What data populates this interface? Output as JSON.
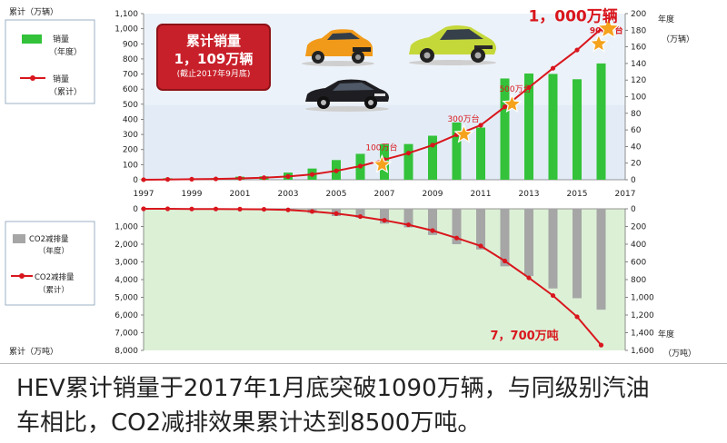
{
  "chart_data": [
    {
      "type": "bar+line",
      "title": "",
      "x": [
        1997,
        1998,
        1999,
        2000,
        2001,
        2002,
        2003,
        2004,
        2005,
        2006,
        2007,
        2008,
        2009,
        2010,
        2011,
        2012,
        2013,
        2014,
        2015,
        2016
      ],
      "x_ticks": [
        "1997",
        "1999",
        "2001",
        "2003",
        "2005",
        "2007",
        "2009",
        "2011",
        "2013",
        "2015",
        "2017"
      ],
      "left_axis": {
        "title": "累计（万辆）",
        "ylim": [
          0,
          1100
        ],
        "ticks": [
          "0",
          "100",
          "200",
          "300",
          "400",
          "500",
          "600",
          "700",
          "800",
          "900",
          "1,000",
          "1,100"
        ]
      },
      "right_axis": {
        "title_line1": "年度",
        "title_line2": "（万辆）",
        "ylim": [
          0,
          200
        ],
        "ticks": [
          "0",
          "20",
          "40",
          "60",
          "80",
          "100",
          "120",
          "140",
          "160",
          "180",
          "200"
        ]
      },
      "series": [
        {
          "name": "销量（年度）",
          "name_line1": "销量",
          "name_line2": "（年度）",
          "axis": "right",
          "color": "#33c23a",
          "values": [
            0.3,
            1.8,
            1.5,
            1.9,
            3.7,
            4.1,
            8.6,
            13.5,
            23.7,
            31.2,
            42.9,
            43.0,
            53.0,
            69.0,
            62.8,
            121.9,
            127.9,
            127.4,
            121.0,
            140.0
          ]
        },
        {
          "name": "销量（累计）",
          "name_line1": "销量",
          "name_line2": "（累计）",
          "axis": "left",
          "color": "#d9161d",
          "values": [
            0.3,
            2.1,
            3.6,
            5.5,
            9.2,
            13.3,
            21.9,
            35.4,
            59.1,
            90.3,
            133.2,
            176.2,
            229.2,
            298.2,
            361.0,
            482.9,
            610.8,
            738.2,
            859.2,
            1000.0
          ]
        }
      ],
      "annotations": [
        {
          "text": "100万台",
          "year": 2006.9,
          "value": 100
        },
        {
          "text": "300万台",
          "year": 2010.3,
          "value": 300
        },
        {
          "text": "500万台",
          "year": 2012.3,
          "value": 500
        },
        {
          "text": "900万台",
          "year": 2015.9,
          "value": 900
        },
        {
          "text": "1，000万辆",
          "year": 2016.3,
          "value": 1000
        }
      ],
      "callout": {
        "title": "累计销量",
        "value": "1，109万辆",
        "note": "(截止2017年9月底)"
      }
    },
    {
      "type": "bar+line",
      "x": [
        1997,
        1998,
        1999,
        2000,
        2001,
        2002,
        2003,
        2004,
        2005,
        2006,
        2007,
        2008,
        2009,
        2010,
        2011,
        2012,
        2013,
        2014,
        2015,
        2016
      ],
      "left_axis": {
        "title": "累计（万吨）",
        "ylim": [
          0,
          8000
        ],
        "inverted": true,
        "ticks": [
          "0",
          "1,000",
          "2,000",
          "3,000",
          "4,000",
          "5,000",
          "6,000",
          "7,000",
          "8,000"
        ]
      },
      "right_axis": {
        "title_line1": "年度",
        "title_line2": "（万吨）",
        "ylim": [
          0,
          1600
        ],
        "inverted": true,
        "ticks": [
          "0",
          "200",
          "400",
          "600",
          "800",
          "1,000",
          "1,200",
          "1,400",
          "1,600"
        ]
      },
      "series": [
        {
          "name": "CO2减排量（年度）",
          "name_line1": "CO2减排量",
          "name_line2": "（年度）",
          "axis": "right",
          "color": "#a6a6a6",
          "values": [
            0,
            0,
            0,
            0,
            5,
            8,
            16,
            48,
            82,
            103,
            167,
            210,
            296,
            400,
            460,
            650,
            760,
            900,
            1010,
            1140
          ]
        },
        {
          "name": "CO2减排量（累计）",
          "name_line1": "CO2减排量",
          "name_line2": "（累计）",
          "axis": "left",
          "color": "#d9161d",
          "values": [
            0,
            0,
            10,
            10,
            20,
            30,
            60,
            150,
            270,
            440,
            650,
            900,
            1230,
            1650,
            2100,
            2950,
            3900,
            4900,
            6100,
            7700
          ]
        }
      ],
      "annotations": [
        {
          "text": "7，700万吨",
          "year": 2016,
          "value": 7700
        }
      ]
    }
  ],
  "caption": {
    "line1": "HEV累计销量于2017年1月底突破1090万辆，与同级别汽油",
    "line2": "车相比，CO2减排效果累计达到8500万吨。"
  }
}
